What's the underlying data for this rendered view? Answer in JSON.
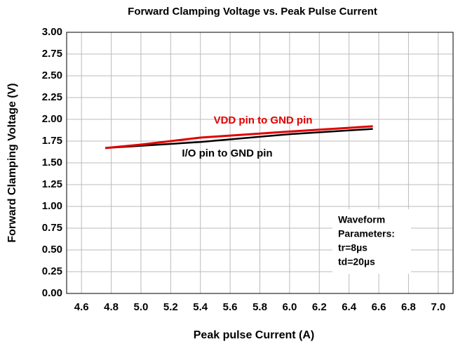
{
  "chart_data": {
    "type": "line",
    "title": "Forward Clamping Voltage vs. Peak Pulse Current",
    "xlabel": "Peak pulse Current (A)",
    "ylabel": "Forward Clamping Voltage (V)",
    "xlim": [
      4.5,
      7.1
    ],
    "ylim": [
      0,
      3
    ],
    "xticks": [
      4.6,
      4.8,
      {
        "value": 5,
        "label": "5.0"
      },
      5.2,
      5.4,
      5.6,
      5.8,
      {
        "value": 6,
        "label": "6.0"
      },
      6.2,
      6.4,
      6.6,
      6.8,
      {
        "value": 7,
        "label": "7.0"
      }
    ],
    "yticks": [
      {
        "value": 0,
        "label": "0.00"
      },
      {
        "value": 0.25,
        "label": "0.25"
      },
      {
        "value": 0.5,
        "label": "0.50"
      },
      {
        "value": 0.75,
        "label": "0.75"
      },
      {
        "value": 1,
        "label": "1.00"
      },
      {
        "value": 1.25,
        "label": "1.25"
      },
      {
        "value": 1.5,
        "label": "1.50"
      },
      {
        "value": 1.75,
        "label": "1.75"
      },
      {
        "value": 2,
        "label": "2.00"
      },
      {
        "value": 2.25,
        "label": "2.25"
      },
      {
        "value": 2.5,
        "label": "2.50"
      },
      {
        "value": 2.75,
        "label": "2.75"
      },
      {
        "value": 3,
        "label": "3.00"
      }
    ],
    "grid": true,
    "series": [
      {
        "name": "VDD pin to GND pin",
        "color": "#e00000",
        "x": [
          4.76,
          5.0,
          5.4,
          6.0,
          6.56
        ],
        "values": [
          1.67,
          1.71,
          1.79,
          1.86,
          1.92
        ]
      },
      {
        "name": "I/O pin to GND pin",
        "color": "#000000",
        "x": [
          4.76,
          5.4,
          6.0,
          6.56
        ],
        "values": [
          1.67,
          1.74,
          1.83,
          1.89
        ]
      }
    ],
    "annotations": [
      "Waveform",
      "Parameters:",
      "tr=8µs",
      "td=20µs"
    ]
  }
}
